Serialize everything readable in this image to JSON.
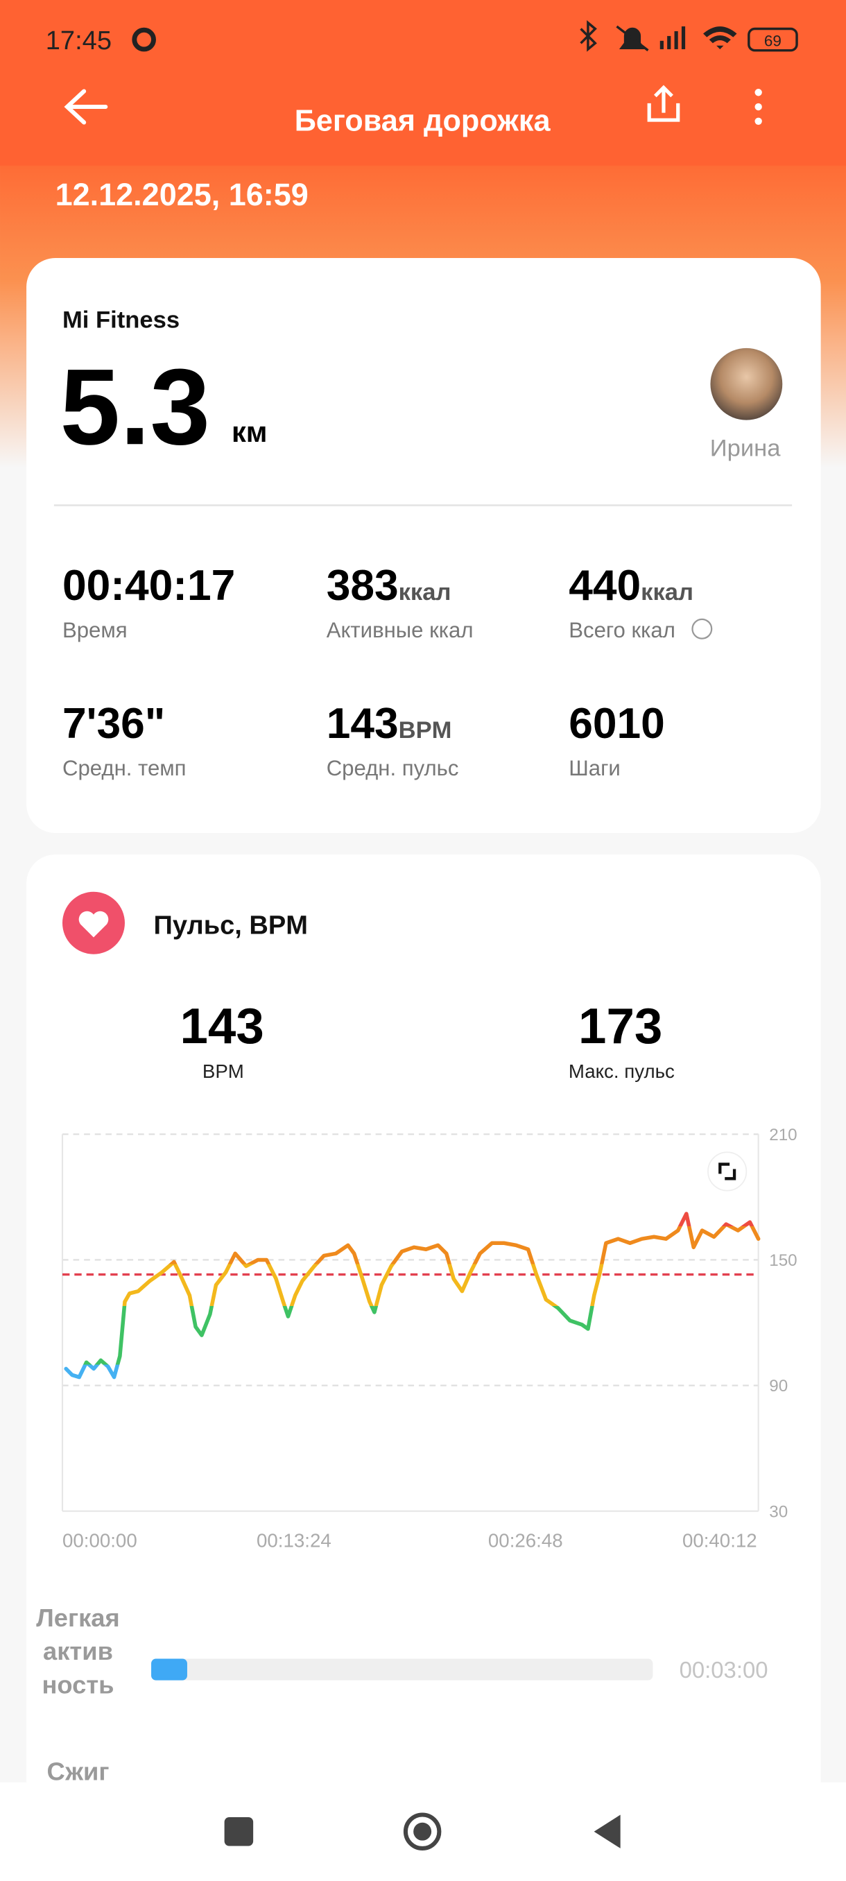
{
  "status_bar": {
    "time": "17:45",
    "battery": "69"
  },
  "header": {
    "title": "Беговая дорожка",
    "date": "12.12.2025, 16:59"
  },
  "summary": {
    "source": "Mi Fitness",
    "distance": "5.3",
    "distance_unit": "км",
    "user": "Ирина",
    "stats": [
      {
        "value": "00:40:17",
        "label": "Время"
      },
      {
        "value": "383",
        "unit": "ккал",
        "label": "Активные ккал"
      },
      {
        "value": "440",
        "unit": "ккал",
        "label": "Всего ккал"
      },
      {
        "value": "7'36\"",
        "label": "Средн. темп"
      },
      {
        "value": "143",
        "unit": "BPM",
        "label": "Средн. пульс"
      },
      {
        "value": "6010",
        "label": "Шаги"
      }
    ]
  },
  "heart_rate": {
    "title": "Пульс, BPM",
    "avg": 143,
    "avg_label": "BPM",
    "max": 173,
    "max_label": "Макс. пульс",
    "chart_data": {
      "type": "line",
      "x": [
        0.21,
        0.56,
        0.97,
        1.39,
        1.81,
        2.22,
        2.64,
        2.99,
        3.33,
        3.61,
        3.89,
        4.38,
        5.07,
        5.76,
        6.46,
        6.81,
        7.36,
        7.71,
        8.06,
        8.54,
        8.89,
        9.45,
        10.0,
        10.63,
        11.32,
        11.81,
        12.36,
        12.78,
        13.06,
        13.47,
        13.89,
        14.58,
        15.14,
        15.83,
        16.53,
        16.88,
        17.36,
        17.78,
        18.06,
        18.47,
        19.03,
        19.65,
        20.35,
        21.04,
        21.74,
        22.22,
        22.64,
        23.13,
        23.61,
        24.17,
        24.86,
        25.56,
        26.25,
        26.95,
        27.43,
        27.99,
        28.68,
        29.38,
        30.07,
        30.42,
        30.77,
        31.11,
        31.46,
        32.16,
        32.85,
        33.54,
        34.24,
        34.93,
        35.63,
        36.11,
        36.53,
        37.02,
        37.71,
        38.41,
        39.1,
        39.79,
        40.28
      ],
      "values": [
        98,
        95,
        94,
        101,
        98,
        102,
        99,
        94,
        104,
        130,
        134,
        135,
        140,
        144,
        149,
        143,
        133,
        118,
        114,
        124,
        138,
        144,
        153,
        147,
        150,
        150,
        141,
        130,
        123,
        133,
        140,
        147,
        152,
        153,
        157,
        153,
        141,
        130,
        125,
        138,
        147,
        154,
        156,
        155,
        157,
        153,
        141,
        135,
        144,
        153,
        158,
        158,
        157,
        155,
        143,
        131,
        127,
        121,
        119,
        117,
        133,
        144,
        158,
        160,
        158,
        160,
        161,
        160,
        164,
        172,
        156,
        164,
        161,
        167,
        164,
        168,
        160
      ],
      "xlim": [
        0,
        40.28
      ],
      "ylim": [
        30,
        210
      ],
      "yticks": [
        30,
        90,
        150,
        210
      ],
      "xticks": [
        {
          "value": 0,
          "label": "00:00:00"
        },
        {
          "value": 13.4,
          "label": "00:13:24"
        },
        {
          "value": 26.8,
          "label": "00:26:48"
        },
        {
          "value": 40.2,
          "label": "00:40:12"
        }
      ]
    }
  },
  "zones": [
    {
      "name": "Легкая активность",
      "duration": "00:03:00"
    },
    {
      "name": "Сжиг"
    }
  ]
}
